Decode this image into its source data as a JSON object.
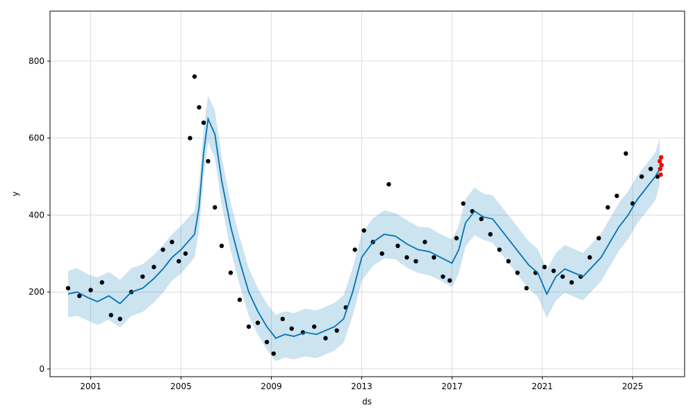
{
  "chart_data": {
    "type": "line",
    "xlabel": "ds",
    "ylabel": "y",
    "xlim": [
      1999.2,
      2027.3
    ],
    "ylim": [
      -20,
      930
    ],
    "x_ticks": [
      2001,
      2005,
      2009,
      2013,
      2017,
      2021,
      2025
    ],
    "y_ticks": [
      0,
      200,
      400,
      600,
      800
    ],
    "grid": true,
    "colors": {
      "observed": "#000000",
      "forecast_line": "#0072B2",
      "interval_fill": "#0072B2",
      "test_points": "#ff0000"
    },
    "forecast": {
      "x": [
        2000.0,
        2000.4,
        2000.9,
        2001.3,
        2001.8,
        2002.3,
        2002.8,
        2003.3,
        2003.8,
        2004.2,
        2004.6,
        2005.0,
        2005.3,
        2005.6,
        2005.8,
        2006.0,
        2006.2,
        2006.5,
        2006.8,
        2007.2,
        2007.6,
        2008.0,
        2008.4,
        2008.8,
        2009.2,
        2009.6,
        2010.0,
        2010.5,
        2011.0,
        2011.4,
        2011.8,
        2012.2,
        2012.6,
        2013.0,
        2013.5,
        2014.0,
        2014.5,
        2015.0,
        2015.5,
        2016.0,
        2016.5,
        2017.0,
        2017.3,
        2017.6,
        2018.0,
        2018.4,
        2018.8,
        2019.2,
        2019.6,
        2020.0,
        2020.4,
        2020.8,
        2021.2,
        2021.6,
        2022.0,
        2022.4,
        2022.8,
        2023.2,
        2023.6,
        2024.0,
        2024.4,
        2024.8,
        2025.2,
        2025.6,
        2026.0,
        2026.2
      ],
      "yhat": [
        195,
        200,
        185,
        175,
        190,
        170,
        200,
        210,
        235,
        260,
        290,
        310,
        330,
        350,
        420,
        560,
        650,
        610,
        490,
        370,
        280,
        200,
        150,
        110,
        80,
        90,
        85,
        95,
        90,
        100,
        110,
        130,
        200,
        290,
        330,
        350,
        345,
        325,
        310,
        305,
        290,
        275,
        310,
        380,
        410,
        395,
        390,
        360,
        330,
        300,
        270,
        250,
        195,
        240,
        260,
        250,
        240,
        265,
        290,
        330,
        370,
        400,
        440,
        470,
        500,
        520
      ],
      "upper": [
        255,
        262,
        245,
        238,
        252,
        232,
        262,
        272,
        297,
        322,
        350,
        372,
        392,
        410,
        480,
        622,
        710,
        672,
        552,
        432,
        342,
        262,
        210,
        170,
        140,
        150,
        145,
        157,
        152,
        162,
        172,
        192,
        262,
        352,
        392,
        412,
        405,
        387,
        370,
        367,
        350,
        337,
        372,
        442,
        472,
        455,
        452,
        422,
        392,
        362,
        332,
        312,
        257,
        302,
        322,
        312,
        302,
        327,
        352,
        392,
        432,
        462,
        502,
        532,
        562,
        600
      ],
      "lower": [
        135,
        138,
        125,
        115,
        128,
        108,
        138,
        148,
        173,
        198,
        230,
        248,
        268,
        290,
        360,
        498,
        590,
        548,
        428,
        308,
        218,
        138,
        90,
        50,
        20,
        30,
        25,
        33,
        28,
        38,
        48,
        68,
        138,
        228,
        268,
        288,
        285,
        263,
        250,
        243,
        230,
        213,
        248,
        318,
        348,
        335,
        328,
        298,
        268,
        238,
        208,
        188,
        133,
        178,
        198,
        188,
        178,
        203,
        228,
        268,
        308,
        338,
        378,
        408,
        438,
        480
      ]
    },
    "observed": {
      "x": [
        2000.0,
        2000.5,
        2001.0,
        2001.5,
        2001.9,
        2002.3,
        2002.8,
        2003.3,
        2003.8,
        2004.2,
        2004.6,
        2004.9,
        2005.2,
        2005.4,
        2005.6,
        2005.8,
        2006.0,
        2006.2,
        2006.5,
        2006.8,
        2007.2,
        2007.6,
        2008.0,
        2008.4,
        2008.8,
        2009.1,
        2009.5,
        2009.9,
        2010.4,
        2010.9,
        2011.4,
        2011.9,
        2012.3,
        2012.7,
        2013.1,
        2013.5,
        2013.9,
        2014.2,
        2014.6,
        2015.0,
        2015.4,
        2015.8,
        2016.2,
        2016.6,
        2016.9,
        2017.2,
        2017.5,
        2017.9,
        2018.3,
        2018.7,
        2019.1,
        2019.5,
        2019.9,
        2020.3,
        2020.7,
        2021.1,
        2021.5,
        2021.9,
        2022.3,
        2022.7,
        2023.1,
        2023.5,
        2023.9,
        2024.3,
        2024.7,
        2025.0,
        2025.4,
        2025.8,
        2026.1
      ],
      "y": [
        210,
        190,
        205,
        225,
        140,
        130,
        200,
        240,
        265,
        310,
        330,
        280,
        300,
        600,
        760,
        680,
        640,
        540,
        420,
        320,
        250,
        180,
        110,
        120,
        70,
        40,
        130,
        105,
        95,
        110,
        80,
        100,
        160,
        310,
        360,
        330,
        300,
        480,
        320,
        290,
        280,
        330,
        290,
        240,
        230,
        340,
        430,
        410,
        390,
        350,
        310,
        280,
        250,
        210,
        250,
        265,
        255,
        240,
        225,
        240,
        290,
        340,
        420,
        450,
        560,
        430,
        500,
        520,
        500
      ]
    },
    "test": {
      "x": [
        2026.2,
        2026.22,
        2026.24,
        2026.26,
        2026.28
      ],
      "y": [
        540,
        520,
        505,
        550,
        530
      ]
    }
  }
}
